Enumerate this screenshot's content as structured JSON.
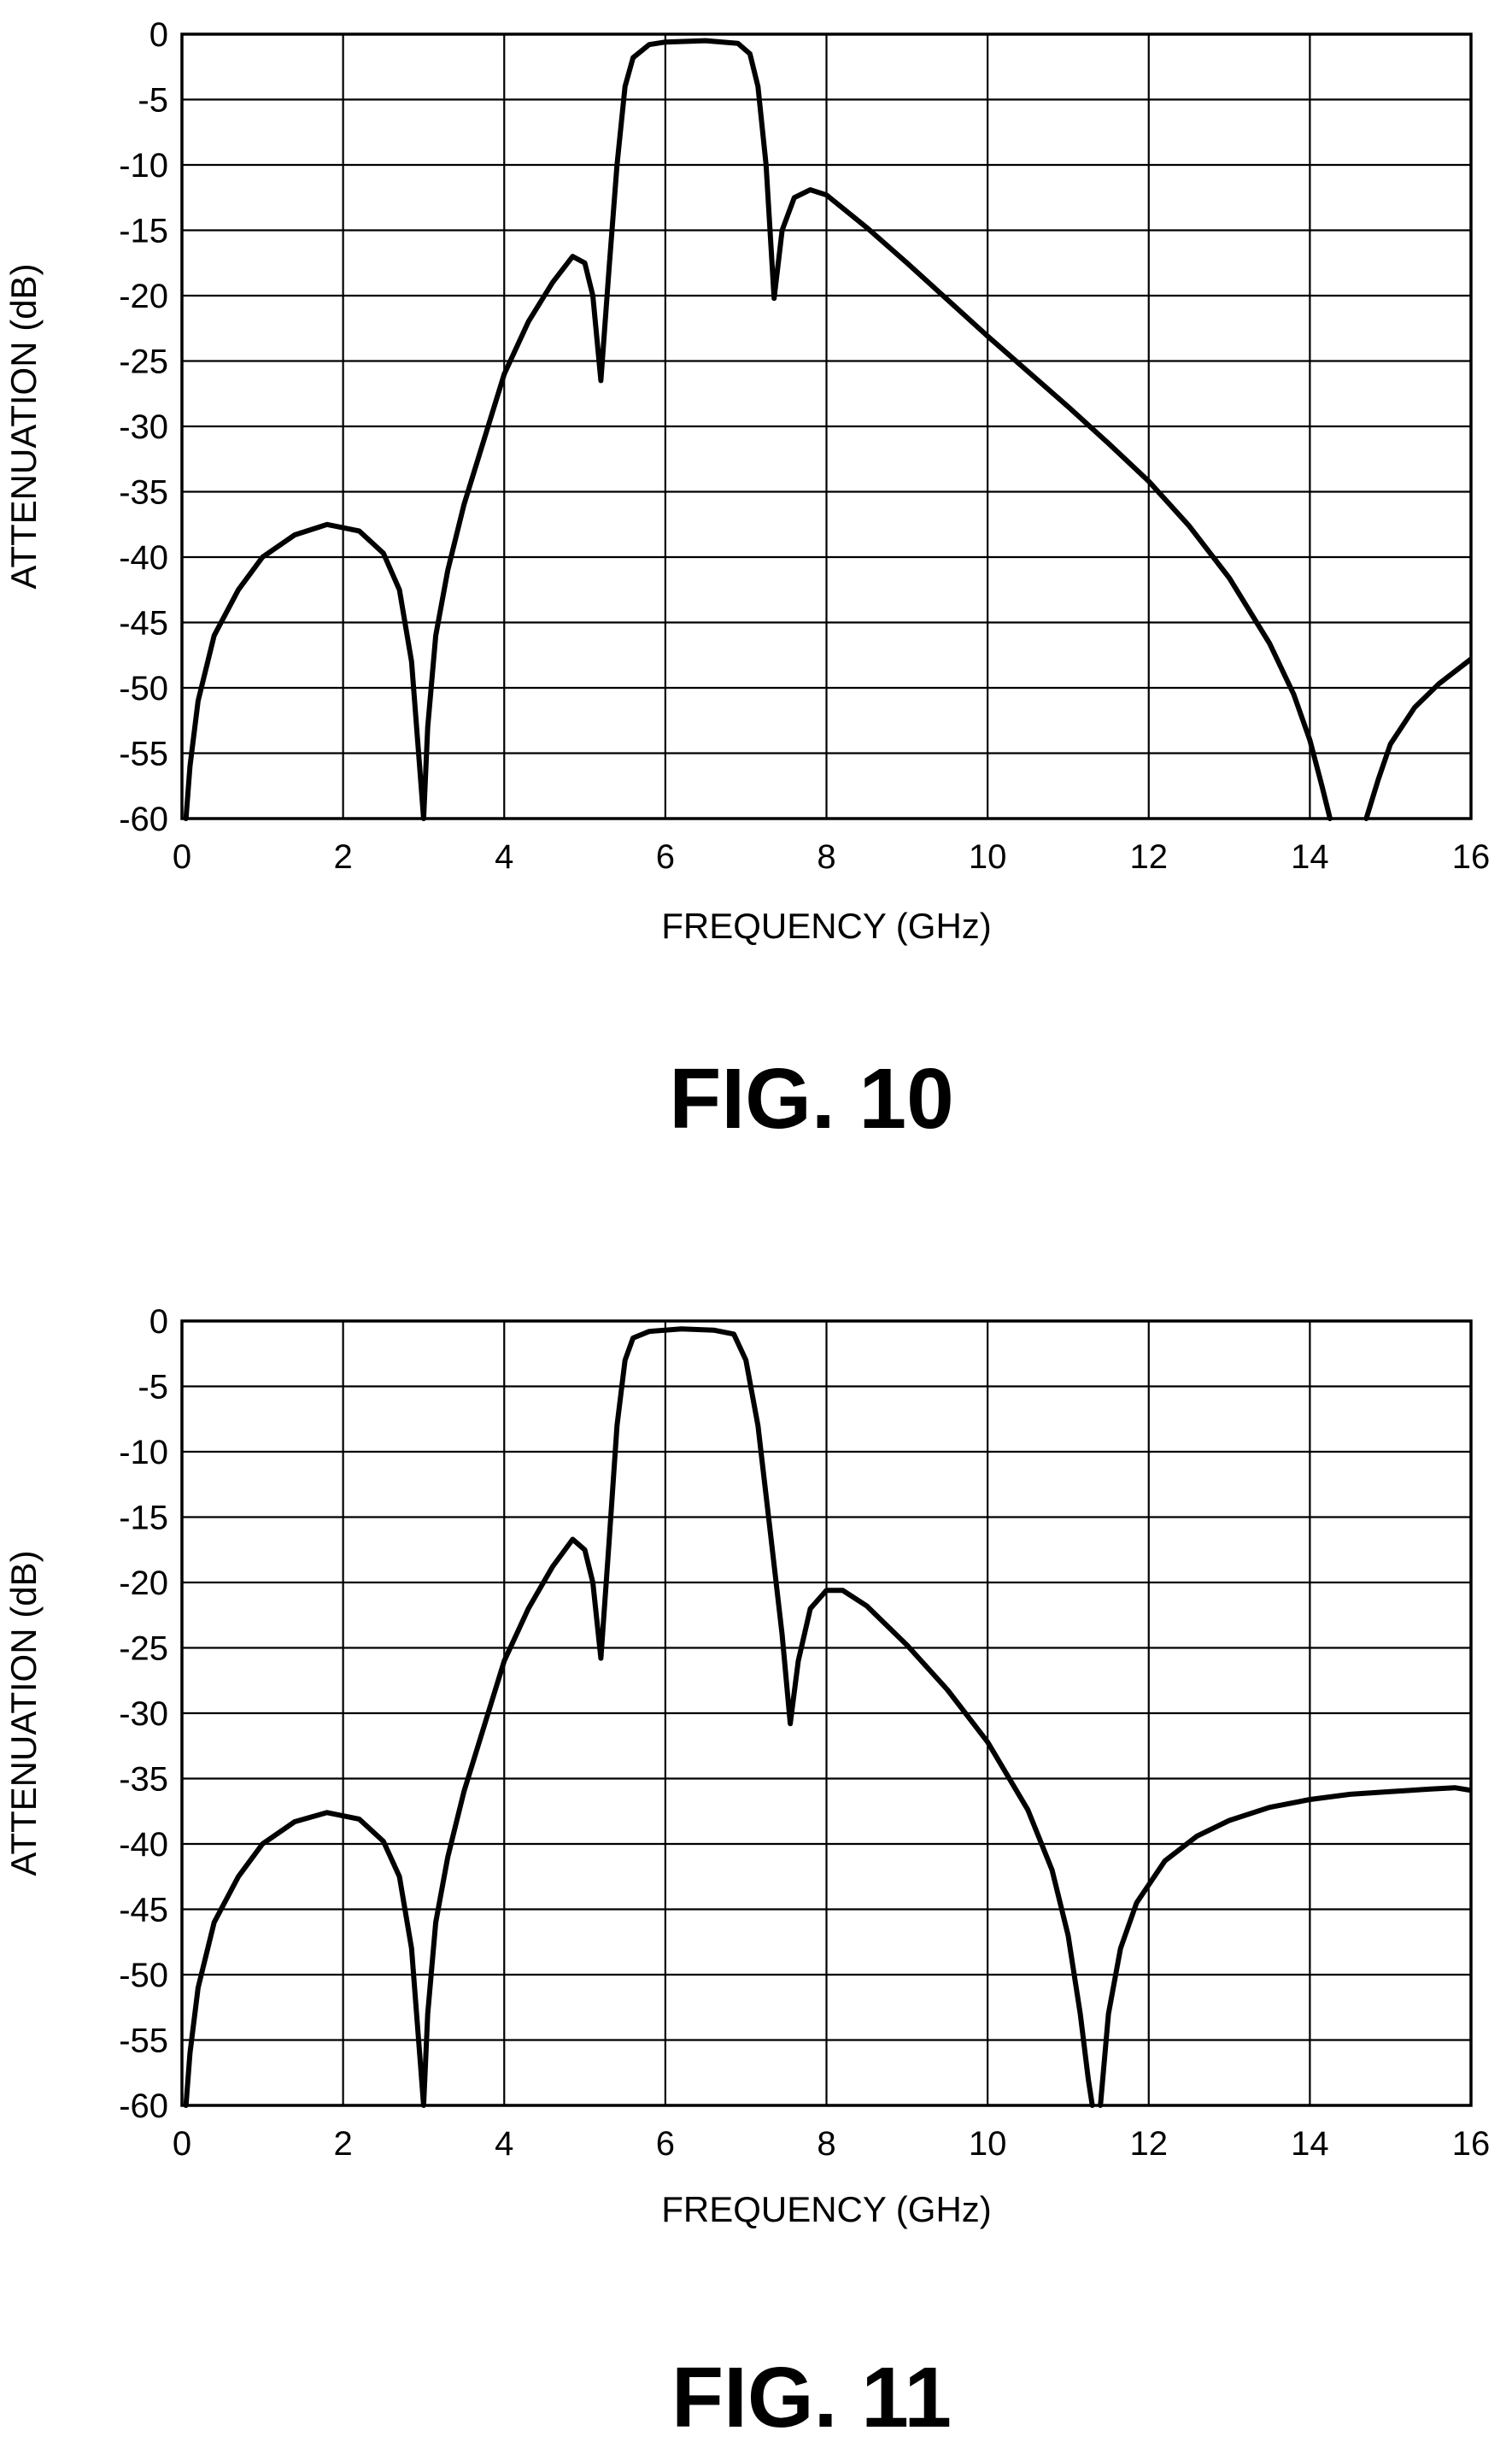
{
  "chart_data": [
    {
      "type": "line",
      "title": "",
      "figure_label": "FIG. 10",
      "xlabel": "FREQUENCY (GHz)",
      "ylabel": "ATTENUATION (dB)",
      "xlim": [
        0,
        16
      ],
      "ylim": [
        -60,
        0
      ],
      "xticks": [
        "0",
        "2",
        "4",
        "6",
        "8",
        "10",
        "12",
        "14",
        "16"
      ],
      "yticks": [
        "0",
        "-5",
        "-10",
        "-15",
        "-20",
        "-25",
        "-30",
        "-35",
        "-40",
        "-45",
        "-50",
        "-55",
        "-60"
      ],
      "grid": true,
      "series": [
        {
          "segments": [
            [
              [
                0.05,
                -60
              ],
              [
                0.1,
                -56
              ],
              [
                0.2,
                -51
              ],
              [
                0.4,
                -46
              ],
              [
                0.7,
                -42.5
              ],
              [
                1.0,
                -40
              ],
              [
                1.4,
                -38.3
              ],
              [
                1.8,
                -37.5
              ],
              [
                2.2,
                -38
              ],
              [
                2.5,
                -39.7
              ],
              [
                2.7,
                -42.5
              ],
              [
                2.85,
                -48
              ],
              [
                2.95,
                -56
              ],
              [
                3.0,
                -60
              ],
              [
                3.05,
                -53
              ],
              [
                3.15,
                -46
              ],
              [
                3.3,
                -41
              ],
              [
                3.5,
                -36
              ],
              [
                3.8,
                -30
              ],
              [
                4.0,
                -26
              ],
              [
                4.3,
                -22
              ],
              [
                4.6,
                -19
              ],
              [
                4.85,
                -17
              ],
              [
                5.0,
                -17.5
              ],
              [
                5.1,
                -20
              ],
              [
                5.2,
                -26.5
              ],
              [
                5.3,
                -18
              ],
              [
                5.4,
                -10
              ],
              [
                5.5,
                -4
              ],
              [
                5.6,
                -1.8
              ],
              [
                5.8,
                -0.8
              ],
              [
                6.0,
                -0.6
              ],
              [
                6.5,
                -0.5
              ],
              [
                6.9,
                -0.7
              ],
              [
                7.05,
                -1.5
              ],
              [
                7.15,
                -4
              ],
              [
                7.25,
                -10
              ],
              [
                7.35,
                -20.2
              ],
              [
                7.45,
                -15
              ],
              [
                7.6,
                -12.5
              ],
              [
                7.8,
                -11.9
              ],
              [
                8.0,
                -12.3
              ],
              [
                8.5,
                -14.8
              ],
              [
                9.0,
                -17.5
              ],
              [
                9.5,
                -20.3
              ],
              [
                10.0,
                -23.1
              ],
              [
                10.5,
                -25.8
              ],
              [
                11.0,
                -28.5
              ],
              [
                11.5,
                -31.3
              ],
              [
                12.0,
                -34.2
              ],
              [
                12.5,
                -37.6
              ],
              [
                13.0,
                -41.6
              ],
              [
                13.5,
                -46.6
              ],
              [
                13.8,
                -50.5
              ],
              [
                14.0,
                -54
              ],
              [
                14.15,
                -57.5
              ],
              [
                14.25,
                -60
              ]
            ],
            [
              [
                14.7,
                -60
              ],
              [
                14.85,
                -57
              ],
              [
                15.0,
                -54.3
              ],
              [
                15.3,
                -51.5
              ],
              [
                15.6,
                -49.7
              ],
              [
                16.0,
                -47.8
              ]
            ]
          ]
        }
      ]
    },
    {
      "type": "line",
      "title": "",
      "figure_label": "FIG. 11",
      "xlabel": "FREQUENCY (GHz)",
      "ylabel": "ATTENUATION (dB)",
      "xlim": [
        0,
        16
      ],
      "ylim": [
        -60,
        0
      ],
      "xticks": [
        "0",
        "2",
        "4",
        "6",
        "8",
        "10",
        "12",
        "14",
        "16"
      ],
      "yticks": [
        "0",
        "-5",
        "-10",
        "-15",
        "-20",
        "-25",
        "-30",
        "-35",
        "-40",
        "-45",
        "-50",
        "-55",
        "-60"
      ],
      "grid": true,
      "series": [
        {
          "segments": [
            [
              [
                0.05,
                -60
              ],
              [
                0.1,
                -56
              ],
              [
                0.2,
                -51
              ],
              [
                0.4,
                -46
              ],
              [
                0.7,
                -42.5
              ],
              [
                1.0,
                -40
              ],
              [
                1.4,
                -38.3
              ],
              [
                1.8,
                -37.6
              ],
              [
                2.2,
                -38.1
              ],
              [
                2.5,
                -39.8
              ],
              [
                2.7,
                -42.5
              ],
              [
                2.85,
                -48
              ],
              [
                2.95,
                -56
              ],
              [
                3.0,
                -60
              ],
              [
                3.05,
                -53
              ],
              [
                3.15,
                -46
              ],
              [
                3.3,
                -41
              ],
              [
                3.5,
                -36
              ],
              [
                3.8,
                -30
              ],
              [
                4.0,
                -26
              ],
              [
                4.3,
                -22
              ],
              [
                4.6,
                -18.8
              ],
              [
                4.85,
                -16.7
              ],
              [
                5.0,
                -17.5
              ],
              [
                5.1,
                -20
              ],
              [
                5.2,
                -25.8
              ],
              [
                5.3,
                -17
              ],
              [
                5.4,
                -8
              ],
              [
                5.5,
                -3
              ],
              [
                5.6,
                -1.3
              ],
              [
                5.8,
                -0.8
              ],
              [
                6.2,
                -0.6
              ],
              [
                6.6,
                -0.7
              ],
              [
                6.85,
                -1.0
              ],
              [
                7.0,
                -3
              ],
              [
                7.15,
                -8
              ],
              [
                7.3,
                -16
              ],
              [
                7.45,
                -24
              ],
              [
                7.55,
                -30.8
              ],
              [
                7.65,
                -26
              ],
              [
                7.8,
                -22
              ],
              [
                8.0,
                -20.6
              ],
              [
                8.2,
                -20.6
              ],
              [
                8.5,
                -21.8
              ],
              [
                9.0,
                -24.8
              ],
              [
                9.5,
                -28.2
              ],
              [
                10.0,
                -32.2
              ],
              [
                10.5,
                -37.4
              ],
              [
                10.8,
                -42
              ],
              [
                11.0,
                -47
              ],
              [
                11.15,
                -53
              ],
              [
                11.25,
                -58
              ],
              [
                11.3,
                -60
              ]
            ],
            [
              [
                11.4,
                -60
              ],
              [
                11.5,
                -53
              ],
              [
                11.65,
                -48
              ],
              [
                11.85,
                -44.5
              ],
              [
                12.2,
                -41.3
              ],
              [
                12.6,
                -39.4
              ],
              [
                13.0,
                -38.2
              ],
              [
                13.5,
                -37.2
              ],
              [
                14.0,
                -36.6
              ],
              [
                14.5,
                -36.2
              ],
              [
                15.0,
                -36.0
              ],
              [
                15.5,
                -35.8
              ],
              [
                15.8,
                -35.7
              ],
              [
                16.0,
                -35.9
              ]
            ]
          ]
        }
      ]
    }
  ]
}
